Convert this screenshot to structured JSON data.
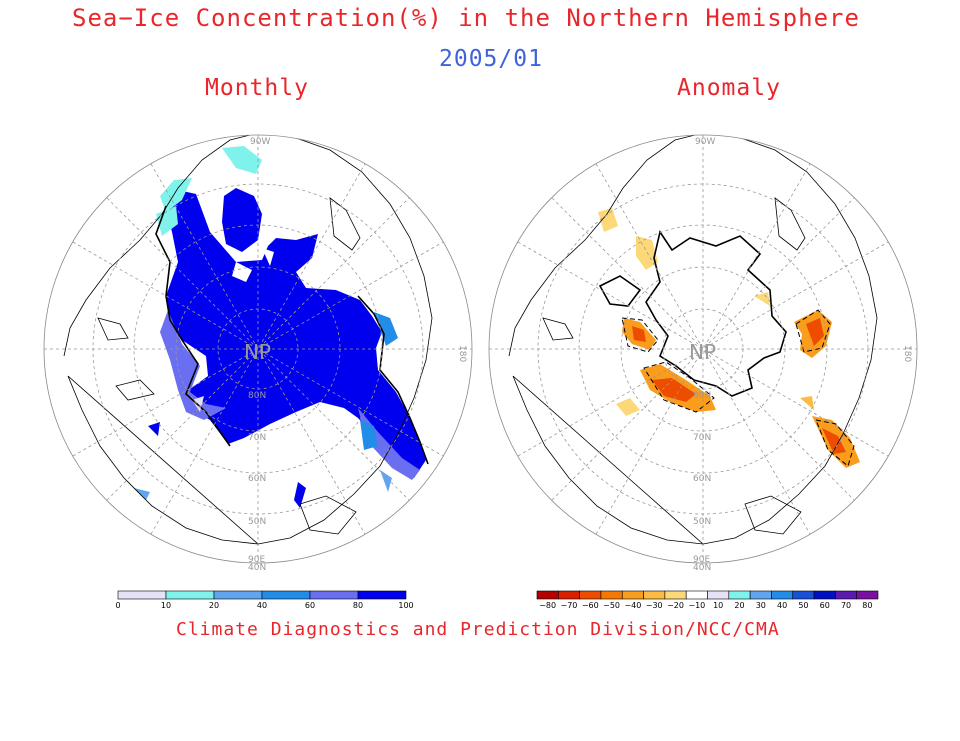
{
  "title": "Sea−Ice Concentration(%) in the Northern Hemisphere",
  "date": "2005/01",
  "panels": {
    "left": {
      "label": "Monthly",
      "pole_label": "NP",
      "lat_labels": [
        "80N",
        "70N",
        "60N",
        "50N",
        "40N"
      ],
      "lon_labels": [
        "90W",
        "180",
        "90E"
      ],
      "colorbar": {
        "ticks": [
          "0",
          "10",
          "20",
          "40",
          "60",
          "80",
          "100"
        ],
        "colors": [
          "#e6e2f5",
          "#7ff2ec",
          "#61a5ee",
          "#228ce9",
          "#6a6ef0",
          "#0000ee"
        ]
      }
    },
    "right": {
      "label": "Anomaly",
      "pole_label": "NP",
      "lat_labels": [
        "80N",
        "70N",
        "60N",
        "50N",
        "40N"
      ],
      "lon_labels": [
        "90W",
        "180",
        "90E"
      ],
      "colorbar": {
        "ticks": [
          "−80",
          "−70",
          "−60",
          "−50",
          "−40",
          "−30",
          "−20",
          "−10",
          "10",
          "20",
          "30",
          "40",
          "50",
          "60",
          "70",
          "80"
        ],
        "colors": [
          "#b40000",
          "#d82000",
          "#ee4d00",
          "#f77800",
          "#fa9c1c",
          "#fdbb45",
          "#fdd878",
          "#ffffff",
          "#e6e2f5",
          "#7ff2ec",
          "#61a5ee",
          "#228ce9",
          "#1a50d8",
          "#0010c0",
          "#5a1ab0",
          "#7a10a0"
        ]
      }
    }
  },
  "credit": "Climate Diagnostics and Prediction Division/NCC/CMA",
  "colors": {
    "title": "#e8262b",
    "date": "#3f63d9",
    "ice": "#0000ee",
    "anomaly_neg": "#fa9c1c",
    "grid": "#999999"
  }
}
